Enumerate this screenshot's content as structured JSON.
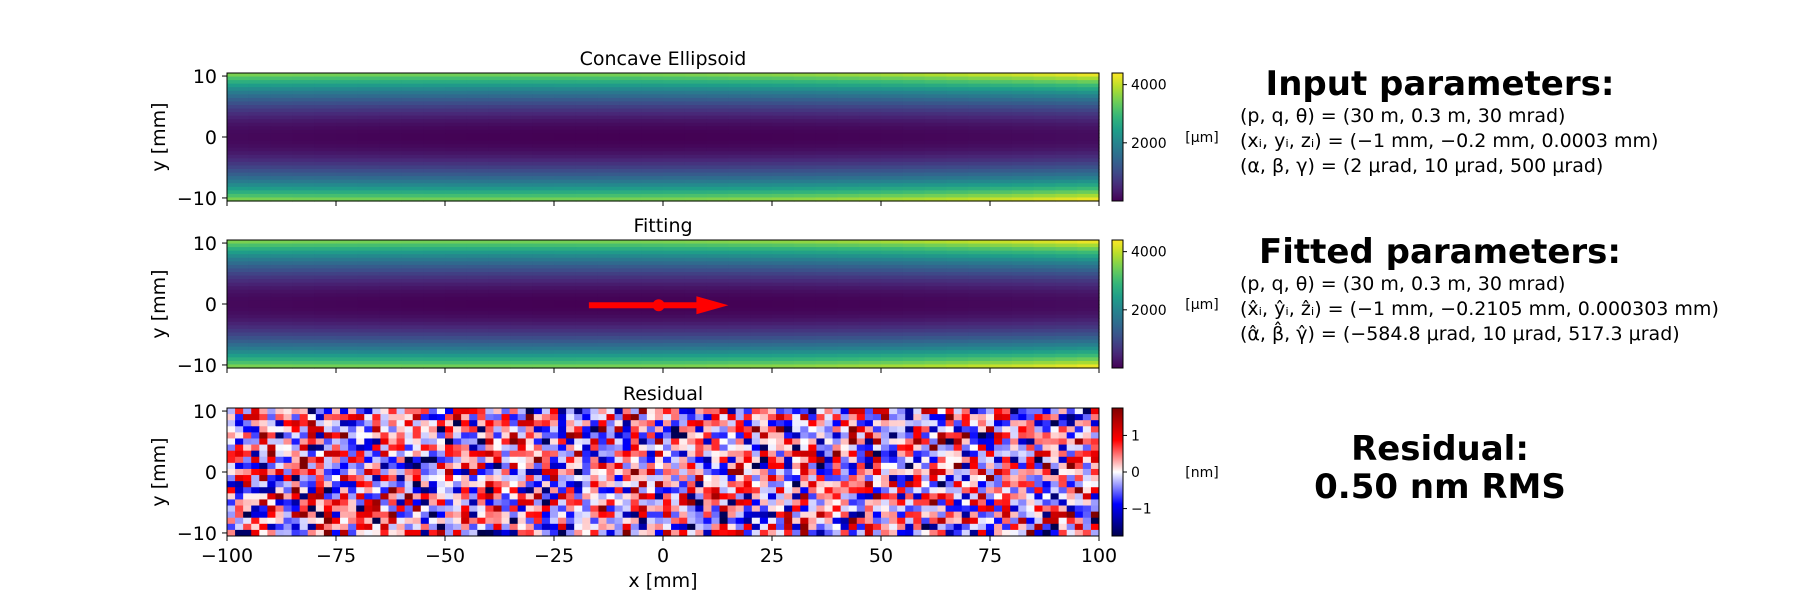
{
  "chart_data": [
    {
      "type": "heatmap",
      "title": "Concave Ellipsoid",
      "xlabel": "",
      "ylabel": "y [mm]",
      "xlim": [
        -100,
        100
      ],
      "ylim": [
        -10.5,
        10.5
      ],
      "x_ticks": [
        -100,
        -75,
        -50,
        -25,
        0,
        25,
        50,
        75,
        100
      ],
      "y_ticks": [
        10,
        0,
        -10
      ],
      "y_tick_labels": [
        "10",
        "0",
        "−10"
      ],
      "colorbar": {
        "label": "[µm]",
        "colormap": "viridis",
        "ticks": [
          2000,
          4000
        ],
        "tick_labels": [
          "2000",
          "4000"
        ],
        "range": [
          0,
          4400
        ]
      },
      "surface": {
        "max_edge_value_left": 3600,
        "max_edge_value_right": 4400,
        "center_value": 0
      }
    },
    {
      "type": "heatmap",
      "title": "Fitting",
      "xlabel": "",
      "ylabel": "y [mm]",
      "xlim": [
        -100,
        100
      ],
      "ylim": [
        -10.5,
        10.5
      ],
      "x_ticks": [
        -100,
        -75,
        -50,
        -25,
        0,
        25,
        50,
        75,
        100
      ],
      "y_ticks": [
        10,
        0,
        -10
      ],
      "y_tick_labels": [
        "10",
        "0",
        "−10"
      ],
      "colorbar": {
        "label": "[µm]",
        "colormap": "viridis",
        "ticks": [
          2000,
          4000
        ],
        "tick_labels": [
          "2000",
          "4000"
        ],
        "range": [
          0,
          4400
        ]
      },
      "surface": {
        "max_edge_value_left": 3600,
        "max_edge_value_right": 4400,
        "center_value": 0
      },
      "annotation": {
        "type": "arrow",
        "color": "#ff0000",
        "point": [
          -1,
          -0.2
        ],
        "tail_x": -17,
        "head_x": 15
      }
    },
    {
      "type": "heatmap",
      "title": "Residual",
      "xlabel": "x [mm]",
      "ylabel": "y [mm]",
      "xlim": [
        -100,
        100
      ],
      "ylim": [
        -10.5,
        10.5
      ],
      "x_ticks": [
        -100,
        -75,
        -50,
        -25,
        0,
        25,
        50,
        75,
        100
      ],
      "x_tick_labels": [
        "−100",
        "−75",
        "−50",
        "−25",
        "0",
        "25",
        "50",
        "75",
        "100"
      ],
      "y_ticks": [
        10,
        0,
        -10
      ],
      "y_tick_labels": [
        "10",
        "0",
        "−10"
      ],
      "colorbar": {
        "label": "[nm]",
        "colormap": "seismic",
        "ticks": [
          1,
          0,
          -1
        ],
        "tick_labels": [
          "1",
          "0",
          "−1"
        ],
        "range": [
          -1.75,
          1.75
        ]
      },
      "noise": {
        "rms": 0.5
      }
    }
  ],
  "panels": {
    "input": {
      "title": "Input parameters:",
      "lines": [
        "(p, q, θ) = (30 m, 0.3 m, 30 mrad)",
        "(xᵢ, yᵢ, zᵢ) = (−1 mm, −0.2 mm, 0.0003 mm)",
        "(α, β, γ) = (2 μrad, 10 μrad, 500 μrad)"
      ]
    },
    "fitted": {
      "title": "Fitted parameters:",
      "lines": [
        "(p, q, θ) = (30 m, 0.3 m, 30 mrad)",
        "(x̂ᵢ, ŷᵢ, ẑᵢ) = (−1 mm, −0.2105 mm, 0.000303 mm)",
        "(α̂, β̂, γ̂) = (−584.8 μrad, 10 μrad, 517.3 μrad)"
      ]
    },
    "residual": {
      "title_line1": "Residual:",
      "title_line2": "0.50 nm RMS"
    }
  }
}
